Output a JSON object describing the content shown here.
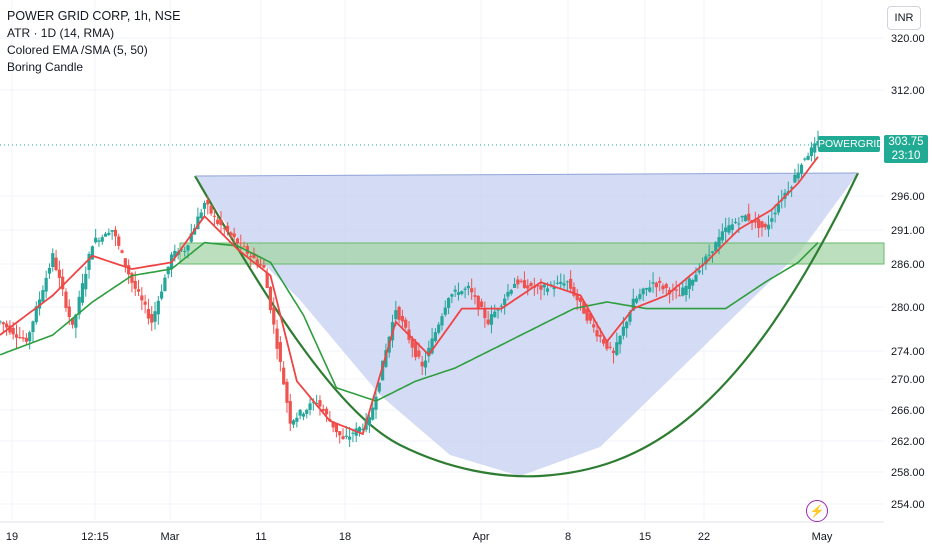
{
  "legend": {
    "title": "POWER GRID CORP, 1h, NSE",
    "line1": "ATR · 1D (14, RMA)",
    "line2": "Colored EMA /SMA (5, 50)",
    "line3": "Boring Candle"
  },
  "currency_button": "INR",
  "price_tag": {
    "symbol": "POWERGRID",
    "price": "303.75",
    "countdown": "23:10"
  },
  "colors": {
    "up": "#26a69a",
    "down": "#ef5350",
    "ema": "#ef4444",
    "sma": "#2e9e3f",
    "cup": "#2e7d32",
    "zone": "#a5d6a7",
    "shade": "#c5cff0"
  },
  "chart_data": {
    "type": "line",
    "y_ticks": [
      "320.00",
      "312.00",
      "296.00",
      "291.00",
      "286.00",
      "280.00",
      "274.00",
      "270.00",
      "266.00",
      "262.00",
      "258.00",
      "254.00"
    ],
    "x_ticks": [
      "19",
      "12:15",
      "Mar",
      "11",
      "18",
      "Apr",
      "8",
      "15",
      "22",
      "May"
    ],
    "ylim": [
      252,
      323
    ],
    "price_series": {
      "name": "Price",
      "x": [
        0,
        4,
        8,
        11,
        14,
        17,
        20,
        23,
        26,
        28,
        31,
        33,
        36,
        40,
        44,
        48,
        52,
        56,
        60,
        64,
        68,
        71,
        74,
        78,
        82,
        86,
        90,
        93,
        96,
        99,
        103,
        106,
        110,
        113,
        116,
        118,
        120,
        122,
        124
      ],
      "values": [
        277,
        274,
        287,
        276,
        289,
        291,
        283,
        277,
        287,
        288,
        295,
        292,
        289,
        285,
        262,
        265,
        259,
        262,
        279,
        270,
        281,
        282,
        277,
        283,
        282,
        283,
        276,
        272,
        280,
        283,
        281,
        285,
        291,
        293,
        291,
        295,
        298,
        302,
        304
      ]
    },
    "ema_series": {
      "name": "EMA 5",
      "x": [
        0,
        8,
        14,
        20,
        26,
        31,
        36,
        41,
        45,
        50,
        55,
        60,
        65,
        70,
        76,
        82,
        88,
        92,
        96,
        101,
        107,
        112,
        117,
        121,
        124
      ],
      "values": [
        275,
        281,
        287,
        285,
        286,
        293,
        288,
        284,
        268,
        262,
        260,
        277,
        272,
        279,
        279,
        283,
        281,
        274,
        279,
        281,
        286,
        291,
        294,
        298,
        302
      ]
    },
    "sma_series": {
      "name": "SMA 50",
      "x": [
        0,
        8,
        14,
        20,
        26,
        31,
        36,
        41,
        46,
        51,
        57,
        63,
        69,
        75,
        81,
        87,
        92,
        98,
        104,
        110,
        116,
        121,
        124
      ],
      "values": [
        272,
        275,
        280,
        284,
        285,
        289,
        288.5,
        286,
        278,
        267,
        265,
        268,
        270,
        273,
        276,
        279,
        280,
        279,
        279,
        279,
        283,
        286,
        289
      ]
    }
  }
}
